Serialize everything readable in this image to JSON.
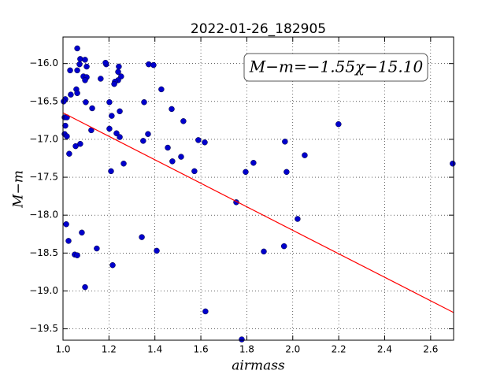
{
  "chart_data": {
    "type": "scatter",
    "title": "2022-01-26_182905",
    "xlabel": "airmass",
    "ylabel": "M−m",
    "annotation": "M−m=−1.55χ−15.10",
    "xlim": [
      1.0,
      2.7
    ],
    "ylim": [
      -19.65,
      -15.65
    ],
    "xticks": [
      {
        "value": 1.0,
        "label": "1.0"
      },
      1.2,
      1.4,
      1.6,
      1.8,
      {
        "value": 2.0,
        "label": "2.0"
      },
      2.2,
      2.4,
      2.6
    ],
    "yticks": [
      {
        "value": -16.0,
        "label": "−16.0"
      },
      {
        "value": -16.5,
        "label": "−16.5"
      },
      {
        "value": -17.0,
        "label": "−17.0"
      },
      {
        "value": -17.5,
        "label": "−17.5"
      },
      {
        "value": -18.0,
        "label": "−18.0"
      },
      {
        "value": -18.5,
        "label": "−18.5"
      },
      {
        "value": -19.0,
        "label": "−19.0"
      },
      {
        "value": -19.5,
        "label": "−19.5"
      }
    ],
    "grid": true,
    "points": {
      "color": "#0000cc",
      "x": [
        1.062,
        1.075,
        1.096,
        1.072,
        1.031,
        1.062,
        1.103,
        1.089,
        1.103,
        1.096,
        1.058,
        1.062,
        1.034,
        1.01,
        1.003,
        1.099,
        1.127,
        1.007,
        1.017,
        1.01,
        1.007,
        1.017,
        1.123,
        1.075,
        1.055,
        1.027,
        1.188,
        1.185,
        1.164,
        1.243,
        1.24,
        1.253,
        1.24,
        1.226,
        1.223,
        1.202,
        1.247,
        1.212,
        1.202,
        1.233,
        1.247,
        1.264,
        1.209,
        1.373,
        1.394,
        1.428,
        1.353,
        1.473,
        1.524,
        1.37,
        1.349,
        1.456,
        1.514,
        1.476,
        1.589,
        1.617,
        1.572,
        1.795,
        1.829,
        1.754,
        1.966,
        1.973,
        2.052,
        2.199,
        2.696,
        2.021,
        1.874,
        1.962,
        1.014,
        1.024,
        1.082,
        1.051,
        1.062,
        1.147,
        1.343,
        1.408,
        1.216,
        1.096,
        1.62,
        1.778
      ],
      "values": [
        -15.8,
        -15.94,
        -15.95,
        -16.01,
        -16.09,
        -16.09,
        -16.04,
        -16.17,
        -16.18,
        -16.22,
        -16.34,
        -16.39,
        -16.41,
        -16.47,
        -16.5,
        -16.51,
        -16.59,
        -16.71,
        -16.71,
        -16.82,
        -16.93,
        -16.96,
        -16.88,
        -17.06,
        -17.09,
        -17.19,
        -16.01,
        -15.99,
        -16.2,
        -16.04,
        -16.11,
        -16.17,
        -16.22,
        -16.24,
        -16.27,
        -16.51,
        -16.63,
        -16.69,
        -16.86,
        -16.92,
        -16.97,
        -17.32,
        -17.42,
        -16.01,
        -16.02,
        -16.34,
        -16.51,
        -16.6,
        -16.76,
        -16.93,
        -17.02,
        -17.11,
        -17.23,
        -17.29,
        -17.01,
        -17.04,
        -17.42,
        -17.43,
        -17.31,
        -17.83,
        -17.03,
        -17.43,
        -17.21,
        -16.8,
        -17.32,
        -18.05,
        -18.48,
        -18.41,
        -18.12,
        -18.34,
        -18.23,
        -18.52,
        -18.53,
        -18.44,
        -18.29,
        -18.47,
        -18.66,
        -18.95,
        -19.27,
        -19.64
      ]
    },
    "fit": {
      "color": "#ff0000",
      "x": [
        1.0,
        2.7
      ],
      "values": [
        -16.65,
        -19.285
      ]
    }
  }
}
